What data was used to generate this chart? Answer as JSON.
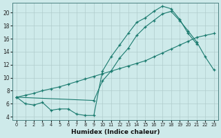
{
  "line1_x": [
    0,
    1,
    2,
    3,
    4,
    5,
    6,
    7,
    8,
    9,
    10,
    11,
    12,
    13,
    14,
    15,
    16,
    17,
    18,
    19,
    20,
    21
  ],
  "line1_y": [
    7.0,
    6.0,
    5.8,
    6.2,
    5.0,
    5.2,
    5.2,
    4.4,
    4.2,
    4.2,
    11.0,
    13.2,
    15.0,
    16.8,
    18.5,
    19.2,
    20.2,
    21.0,
    20.6,
    19.0,
    16.8,
    15.2
  ],
  "line2_x": [
    0,
    1,
    2,
    3,
    4,
    5,
    6,
    7,
    8,
    9,
    10,
    11,
    12,
    13,
    14,
    15,
    16,
    17,
    18,
    19,
    20,
    21,
    22,
    23
  ],
  "line2_y": [
    7.0,
    7.3,
    7.6,
    8.0,
    8.3,
    8.6,
    9.0,
    9.4,
    9.8,
    10.2,
    10.6,
    11.0,
    11.4,
    11.8,
    12.2,
    12.6,
    13.2,
    13.8,
    14.4,
    15.0,
    15.6,
    16.2,
    16.5,
    16.8
  ],
  "line3_x": [
    0,
    9,
    10,
    11,
    12,
    13,
    14,
    15,
    16,
    17,
    18,
    19,
    20,
    21,
    22,
    23
  ],
  "line3_y": [
    7.0,
    6.5,
    9.5,
    11.0,
    13.0,
    14.5,
    16.5,
    17.8,
    18.8,
    19.8,
    20.2,
    18.8,
    17.2,
    15.5,
    13.2,
    11.2
  ],
  "color": "#1a7a6e",
  "bg_color": "#ceeaea",
  "grid_major_color": "#b0cccc",
  "grid_minor_color": "#c8e0e0",
  "xlabel": "Humidex (Indice chaleur)",
  "xlim": [
    -0.5,
    23.5
  ],
  "ylim": [
    3.5,
    21.5
  ],
  "yticks": [
    4,
    6,
    8,
    10,
    12,
    14,
    16,
    18,
    20
  ],
  "xticks": [
    0,
    1,
    2,
    3,
    4,
    5,
    6,
    7,
    8,
    9,
    10,
    11,
    12,
    13,
    14,
    15,
    16,
    17,
    18,
    19,
    20,
    21,
    22,
    23
  ]
}
